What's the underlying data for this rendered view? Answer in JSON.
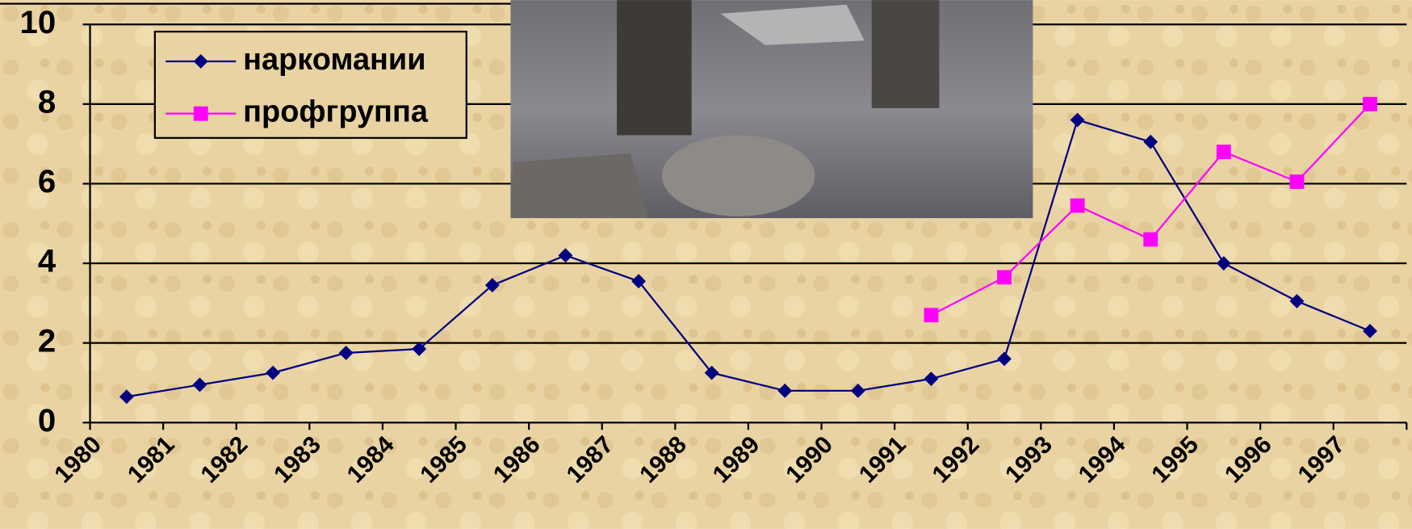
{
  "chart_data": {
    "type": "line",
    "categories": [
      "1980",
      "1981",
      "1982",
      "1983",
      "1984",
      "1985",
      "1986",
      "1987",
      "1988",
      "1989",
      "1990",
      "1991",
      "1992",
      "1993",
      "1994",
      "1995",
      "1996",
      "1997"
    ],
    "series": [
      {
        "name": "наркомании",
        "color": "#000080",
        "marker": "diamond",
        "values": [
          0.65,
          0.95,
          1.25,
          1.75,
          1.85,
          3.45,
          4.2,
          3.55,
          1.25,
          0.8,
          0.8,
          1.1,
          1.6,
          7.6,
          7.05,
          4.0,
          3.05,
          2.3
        ]
      },
      {
        "name": "профгруппа",
        "color": "#ff00ff",
        "marker": "square",
        "values": [
          null,
          null,
          null,
          null,
          null,
          null,
          null,
          null,
          null,
          null,
          null,
          2.7,
          3.65,
          5.45,
          4.6,
          6.8,
          6.05,
          8.0
        ]
      }
    ],
    "ylim": [
      0,
      10
    ],
    "yticks": [
      0,
      2,
      4,
      6,
      8,
      10
    ],
    "grid": true
  }
}
